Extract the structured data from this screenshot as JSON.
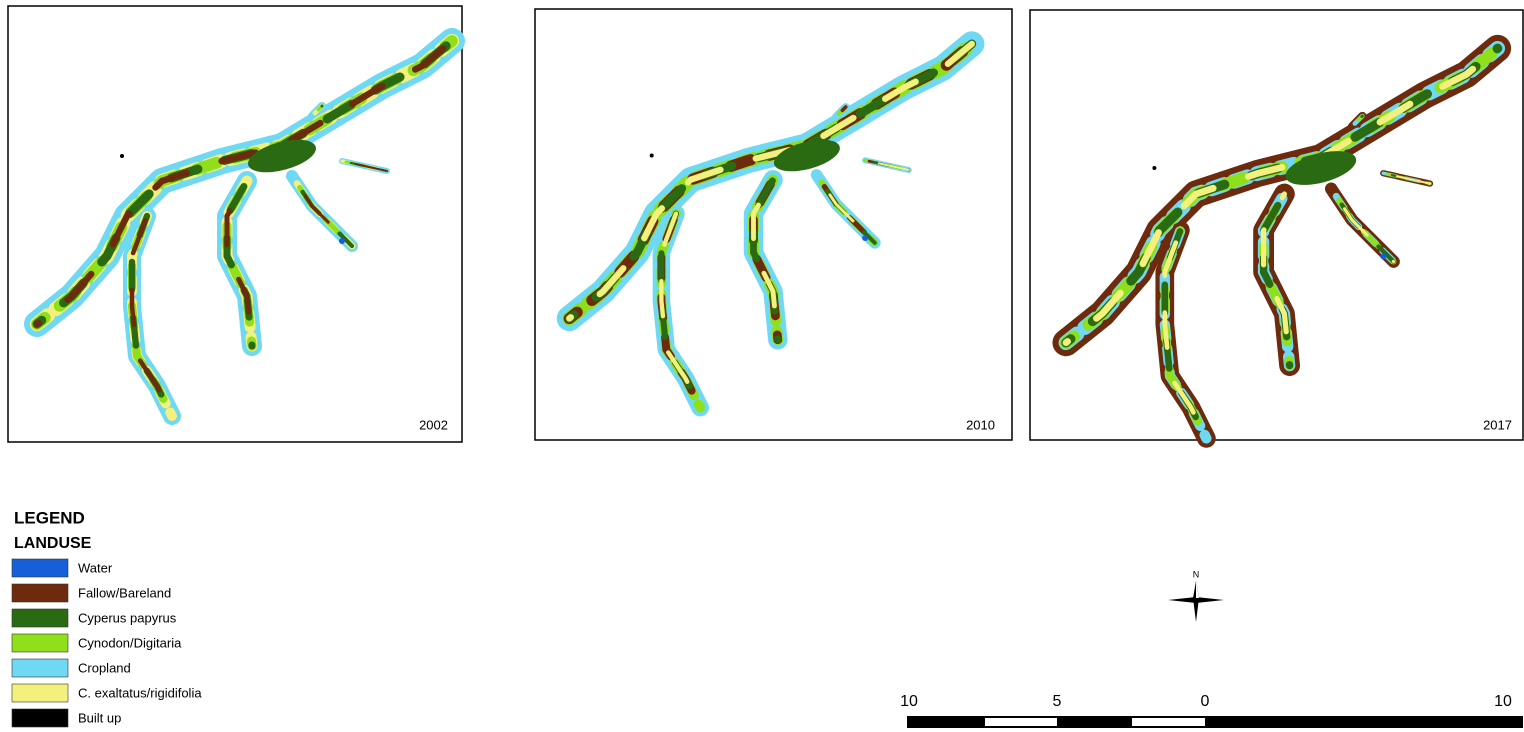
{
  "panels": [
    {
      "label": "2002"
    },
    {
      "label": "2010"
    },
    {
      "label": "2017"
    }
  ],
  "legend": {
    "title": "LEGEND",
    "subtitle": "LANDUSE",
    "items": [
      {
        "label": "Water",
        "color": "#1560d8"
      },
      {
        "label": "Fallow/Bareland",
        "color": "#6e2a0c"
      },
      {
        "label": "Cyperus papyrus",
        "color": "#2a6a12"
      },
      {
        "label": "Cynodon/Digitaria",
        "color": "#8fe01a"
      },
      {
        "label": "Cropland",
        "color": "#6fd8f2"
      },
      {
        "label": "C. exaltatus/rigidifolia",
        "color": "#f4f07e"
      },
      {
        "label": "Built up",
        "color": "#000000"
      }
    ]
  },
  "north_arrow": {
    "label": "N"
  },
  "scale_bar": {
    "labels": [
      "10",
      "5",
      "0",
      "10"
    ]
  }
}
